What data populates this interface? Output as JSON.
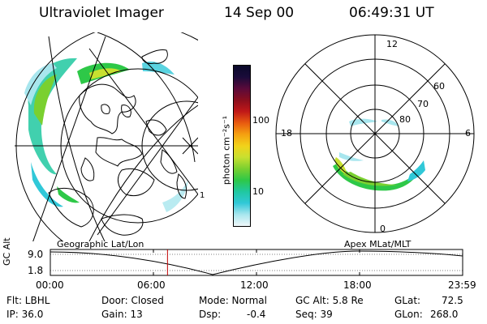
{
  "header": {
    "instrument": "Ultraviolet Imager",
    "date": "14 Sep 00",
    "time": "06:49:31 UT"
  },
  "colorbar": {
    "label": "photon cm⁻²s⁻¹",
    "tick_100": "100",
    "tick_10": "10",
    "colors": [
      "#0a0a2a",
      "#1a0b3a",
      "#5a0a3a",
      "#8a0e1e",
      "#c01818",
      "#e85a10",
      "#f5a010",
      "#f2d21a",
      "#c8e030",
      "#7ad030",
      "#2ec848",
      "#20c8a0",
      "#30c8d8",
      "#a8e6ee",
      "#f0f8fa"
    ]
  },
  "left_panel": {
    "label": "Geographic Lat/Lon",
    "outer_label": "1"
  },
  "right_panel": {
    "label": "Apex MLat/MLT",
    "mlt_top": "12",
    "mlt_left": "18",
    "mlt_right": "6",
    "mlt_bottom": "0",
    "lat_60": "60",
    "lat_70": "70",
    "lat_80": "80"
  },
  "orbit_plot": {
    "ylabel": "GC Alt",
    "y_max": "9.0",
    "y_min": "1.8",
    "x_ticks": [
      "00:00",
      "06:00",
      "12:00",
      "18:00",
      "23:59"
    ],
    "marker_hour": 6.82
  },
  "info": {
    "filter": "Flt: LBHL",
    "ip": "IP: 36.0",
    "door": "Door: Closed",
    "gain": "Gain: 13",
    "mode": "Mode: Normal",
    "dsp_label": "Dsp:",
    "dsp_value": "-0.4",
    "gc_alt": "GC Alt: 5.8 Re",
    "seq": "Seq: 39",
    "glat_label": "GLat:",
    "glat_value": "72.5",
    "glon_label": "GLon:",
    "glon_value": "268.0"
  }
}
